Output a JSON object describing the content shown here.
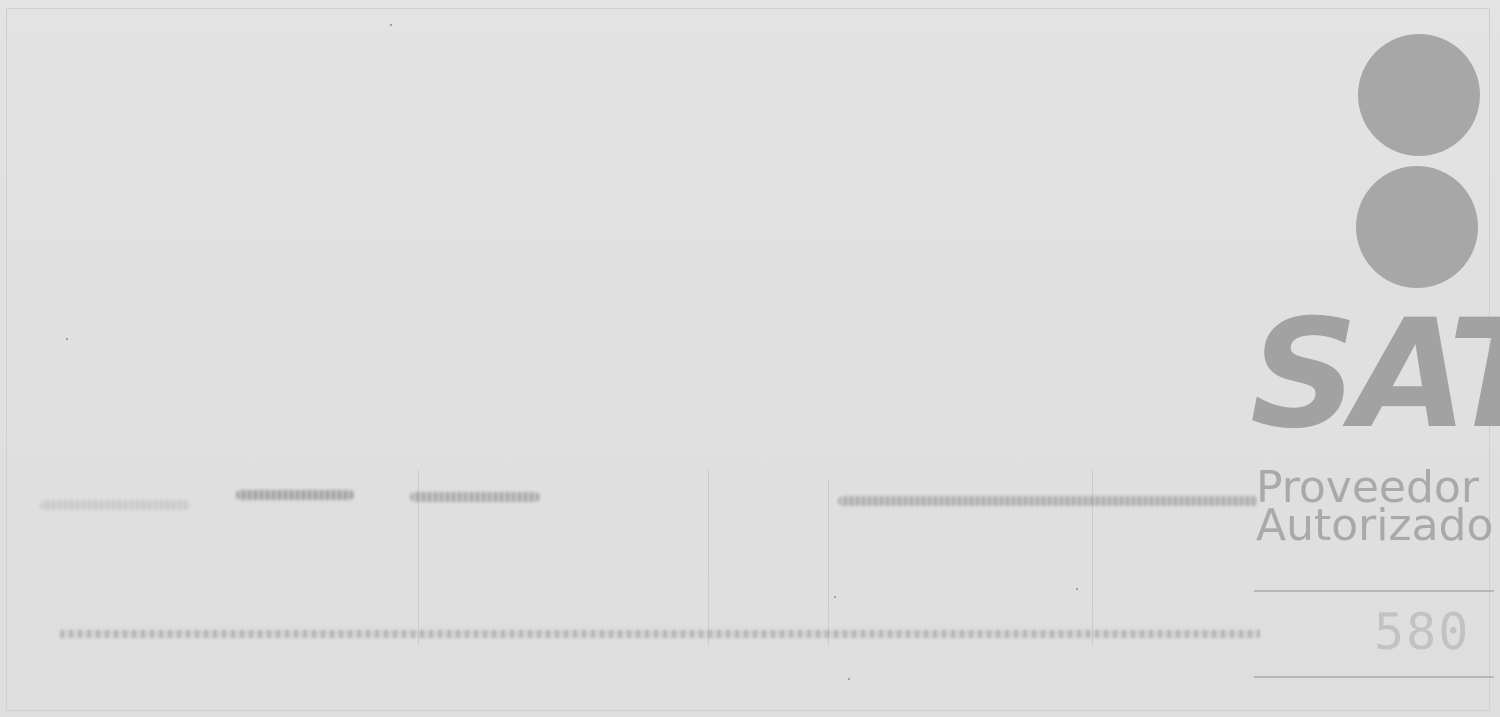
{
  "seal": {
    "wordmark": "SAT",
    "line1": "Proveedor",
    "line2": "Autorizado",
    "number": "580",
    "color": "#a7a7a7"
  }
}
